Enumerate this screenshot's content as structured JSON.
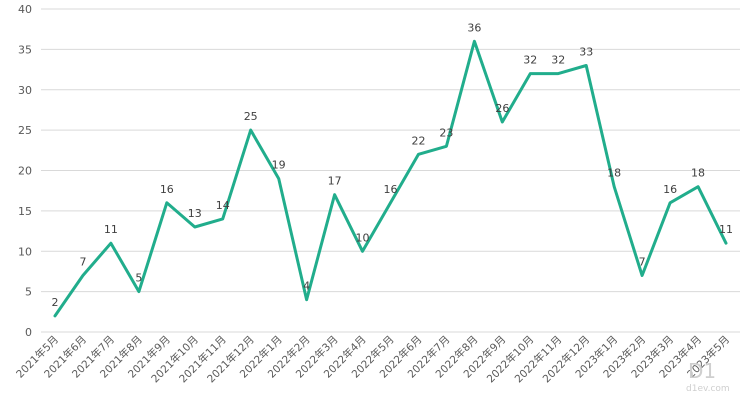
{
  "chart_data": {
    "type": "line",
    "categories": [
      "2021年5月",
      "2021年6月",
      "2021年7月",
      "2021年8月",
      "2021年9月",
      "2021年10月",
      "2021年11月",
      "2021年12月",
      "2022年1月",
      "2022年2月",
      "2022年3月",
      "2022年4月",
      "2022年5月",
      "2022年6月",
      "2022年7月",
      "2022年8月",
      "2022年9月",
      "2022年10月",
      "2022年11月",
      "2022年12月",
      "2023年1月",
      "2023年2月",
      "2023年3月",
      "2023年4月",
      "2023年5月"
    ],
    "values": [
      2,
      7,
      11,
      5,
      16,
      13,
      14,
      25,
      19,
      4,
      17,
      10,
      16,
      22,
      23,
      36,
      26,
      32,
      32,
      33,
      18,
      7,
      16,
      18,
      11
    ],
    "title": "",
    "xlabel": "",
    "ylabel": "",
    "ylim": [
      0,
      40
    ],
    "yticks": [
      0,
      5,
      10,
      15,
      20,
      25,
      30,
      35,
      40
    ],
    "grid": true,
    "data_labels": true,
    "legend": "none",
    "line_color": "#21ad8c"
  },
  "watermark": {
    "main": "D1",
    "sub": "d1ev.com"
  }
}
